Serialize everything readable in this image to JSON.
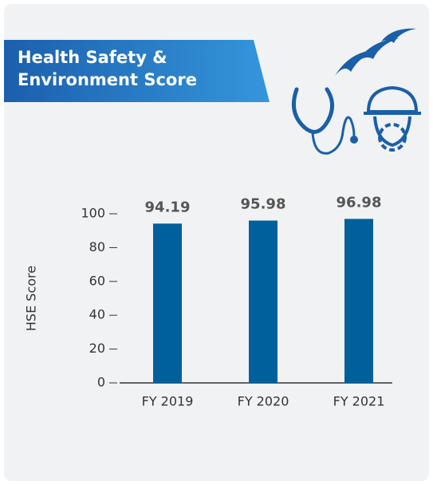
{
  "chart_data": {
    "type": "bar",
    "title": "Health Safety & Environment Score",
    "ylabel": "HSE Score",
    "categories": [
      "FY 2019",
      "FY 2020",
      "FY 2021"
    ],
    "values": [
      94.19,
      95.98,
      96.98
    ],
    "color": "#00609c",
    "ylim": [
      0,
      100
    ],
    "yticks": [
      0,
      20,
      40,
      60,
      80,
      100
    ]
  }
}
